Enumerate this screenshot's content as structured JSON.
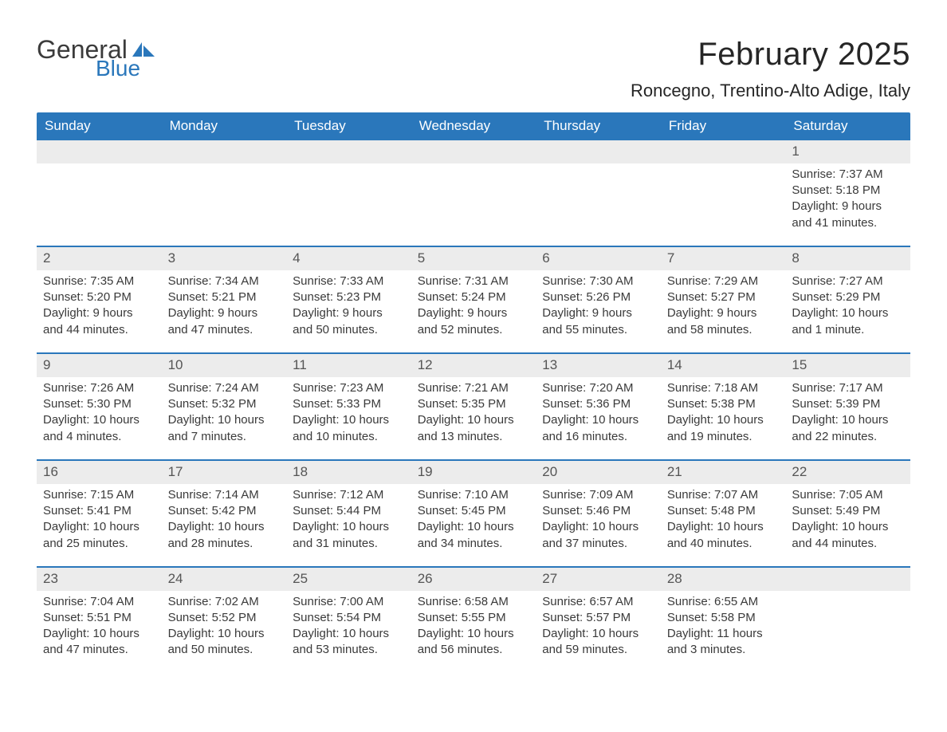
{
  "logo": {
    "text1": "General",
    "text2": "Blue",
    "shape_color": "#2a77bb"
  },
  "title": "February 2025",
  "location": "Roncegno, Trentino-Alto Adige, Italy",
  "colors": {
    "header_bg": "#2a77bb",
    "daynum_bg": "#ececec",
    "rule": "#2a77bb",
    "text": "#3a3a3a"
  },
  "days_of_week": [
    "Sunday",
    "Monday",
    "Tuesday",
    "Wednesday",
    "Thursday",
    "Friday",
    "Saturday"
  ],
  "weeks": [
    [
      null,
      null,
      null,
      null,
      null,
      null,
      {
        "n": "1",
        "sr": "7:37 AM",
        "ss": "5:18 PM",
        "dl": "9 hours and 41 minutes."
      }
    ],
    [
      {
        "n": "2",
        "sr": "7:35 AM",
        "ss": "5:20 PM",
        "dl": "9 hours and 44 minutes."
      },
      {
        "n": "3",
        "sr": "7:34 AM",
        "ss": "5:21 PM",
        "dl": "9 hours and 47 minutes."
      },
      {
        "n": "4",
        "sr": "7:33 AM",
        "ss": "5:23 PM",
        "dl": "9 hours and 50 minutes."
      },
      {
        "n": "5",
        "sr": "7:31 AM",
        "ss": "5:24 PM",
        "dl": "9 hours and 52 minutes."
      },
      {
        "n": "6",
        "sr": "7:30 AM",
        "ss": "5:26 PM",
        "dl": "9 hours and 55 minutes."
      },
      {
        "n": "7",
        "sr": "7:29 AM",
        "ss": "5:27 PM",
        "dl": "9 hours and 58 minutes."
      },
      {
        "n": "8",
        "sr": "7:27 AM",
        "ss": "5:29 PM",
        "dl": "10 hours and 1 minute."
      }
    ],
    [
      {
        "n": "9",
        "sr": "7:26 AM",
        "ss": "5:30 PM",
        "dl": "10 hours and 4 minutes."
      },
      {
        "n": "10",
        "sr": "7:24 AM",
        "ss": "5:32 PM",
        "dl": "10 hours and 7 minutes."
      },
      {
        "n": "11",
        "sr": "7:23 AM",
        "ss": "5:33 PM",
        "dl": "10 hours and 10 minutes."
      },
      {
        "n": "12",
        "sr": "7:21 AM",
        "ss": "5:35 PM",
        "dl": "10 hours and 13 minutes."
      },
      {
        "n": "13",
        "sr": "7:20 AM",
        "ss": "5:36 PM",
        "dl": "10 hours and 16 minutes."
      },
      {
        "n": "14",
        "sr": "7:18 AM",
        "ss": "5:38 PM",
        "dl": "10 hours and 19 minutes."
      },
      {
        "n": "15",
        "sr": "7:17 AM",
        "ss": "5:39 PM",
        "dl": "10 hours and 22 minutes."
      }
    ],
    [
      {
        "n": "16",
        "sr": "7:15 AM",
        "ss": "5:41 PM",
        "dl": "10 hours and 25 minutes."
      },
      {
        "n": "17",
        "sr": "7:14 AM",
        "ss": "5:42 PM",
        "dl": "10 hours and 28 minutes."
      },
      {
        "n": "18",
        "sr": "7:12 AM",
        "ss": "5:44 PM",
        "dl": "10 hours and 31 minutes."
      },
      {
        "n": "19",
        "sr": "7:10 AM",
        "ss": "5:45 PM",
        "dl": "10 hours and 34 minutes."
      },
      {
        "n": "20",
        "sr": "7:09 AM",
        "ss": "5:46 PM",
        "dl": "10 hours and 37 minutes."
      },
      {
        "n": "21",
        "sr": "7:07 AM",
        "ss": "5:48 PM",
        "dl": "10 hours and 40 minutes."
      },
      {
        "n": "22",
        "sr": "7:05 AM",
        "ss": "5:49 PM",
        "dl": "10 hours and 44 minutes."
      }
    ],
    [
      {
        "n": "23",
        "sr": "7:04 AM",
        "ss": "5:51 PM",
        "dl": "10 hours and 47 minutes."
      },
      {
        "n": "24",
        "sr": "7:02 AM",
        "ss": "5:52 PM",
        "dl": "10 hours and 50 minutes."
      },
      {
        "n": "25",
        "sr": "7:00 AM",
        "ss": "5:54 PM",
        "dl": "10 hours and 53 minutes."
      },
      {
        "n": "26",
        "sr": "6:58 AM",
        "ss": "5:55 PM",
        "dl": "10 hours and 56 minutes."
      },
      {
        "n": "27",
        "sr": "6:57 AM",
        "ss": "5:57 PM",
        "dl": "10 hours and 59 minutes."
      },
      {
        "n": "28",
        "sr": "6:55 AM",
        "ss": "5:58 PM",
        "dl": "11 hours and 3 minutes."
      },
      null
    ]
  ],
  "labels": {
    "sunrise": "Sunrise: ",
    "sunset": "Sunset: ",
    "daylight": "Daylight: "
  }
}
